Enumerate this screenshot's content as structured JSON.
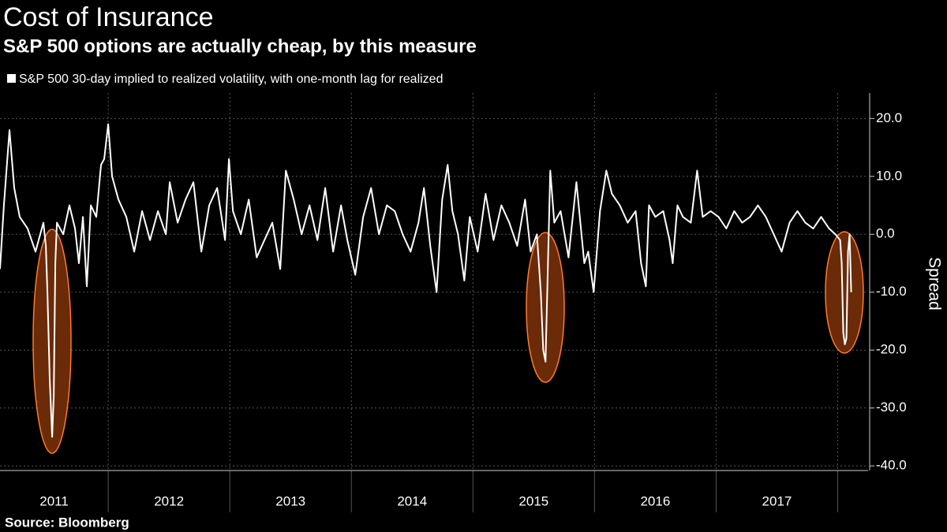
{
  "chart_data": {
    "type": "line",
    "title": "Cost of Insurance",
    "subtitle": "S&P 500 options are actually cheap, by this measure",
    "y_label": "Spread",
    "source": "Source: Bloomberg",
    "grid": true,
    "xlim": [
      2011.11,
      2018.25
    ],
    "xticks": [
      2012,
      2013,
      2014,
      2015,
      2016,
      2017,
      2018
    ],
    "x_categories": [
      "2011",
      "2012",
      "2013",
      "2014",
      "2015",
      "2016",
      "2017"
    ],
    "ylim": [
      -40.8,
      24.4
    ],
    "yticks": [
      {
        "value": 20,
        "label": "20.0"
      },
      {
        "value": 10,
        "label": "10.0"
      },
      {
        "value": 0,
        "label": "0.0"
      },
      {
        "value": -10,
        "label": "-10.0"
      },
      {
        "value": -20,
        "label": "-20.0"
      },
      {
        "value": -30,
        "label": "-30.0"
      },
      {
        "value": -40,
        "label": "-40.0"
      }
    ],
    "x": [
      2011.11,
      2011.142,
      2011.188,
      2011.227,
      2011.272,
      2011.337,
      2011.402,
      2011.467,
      2011.487,
      2011.5,
      2011.519,
      2011.539,
      2011.552,
      2011.565,
      2011.578,
      2011.63,
      2011.681,
      2011.727,
      2011.759,
      2011.792,
      2011.824,
      2011.857,
      2011.902,
      2011.941,
      2011.967,
      2012.0,
      2012.032,
      2012.084,
      2012.149,
      2012.214,
      2012.279,
      2012.344,
      2012.409,
      2012.474,
      2012.506,
      2012.571,
      2012.636,
      2012.701,
      2012.766,
      2012.831,
      2012.896,
      2012.961,
      2012.993,
      2013.026,
      2013.091,
      2013.156,
      2013.221,
      2013.285,
      2013.35,
      2013.415,
      2013.461,
      2013.526,
      2013.591,
      2013.656,
      2013.721,
      2013.785,
      2013.85,
      2013.915,
      2013.967,
      2014.032,
      2014.097,
      2014.162,
      2014.227,
      2014.292,
      2014.357,
      2014.422,
      2014.487,
      2014.552,
      2014.597,
      2014.649,
      2014.701,
      2014.747,
      2014.792,
      2014.831,
      2014.877,
      2014.929,
      2014.974,
      2015.039,
      2015.104,
      2015.169,
      2015.234,
      2015.299,
      2015.364,
      2015.429,
      2015.474,
      2015.526,
      2015.558,
      2015.578,
      2015.597,
      2015.617,
      2015.636,
      2015.669,
      2015.721,
      2015.786,
      2015.851,
      2015.916,
      2015.948,
      2015.993,
      2016.045,
      2016.097,
      2016.143,
      2016.208,
      2016.273,
      2016.338,
      2016.383,
      2016.422,
      2016.448,
      2016.5,
      2016.565,
      2016.617,
      2016.643,
      2016.682,
      2016.727,
      2016.792,
      2016.844,
      2016.89,
      2016.955,
      2017.02,
      2017.084,
      2017.149,
      2017.214,
      2017.279,
      2017.344,
      2017.409,
      2017.474,
      2017.539,
      2017.604,
      2017.669,
      2017.734,
      2017.799,
      2017.864,
      2017.929,
      2017.981,
      2018.02,
      2018.033,
      2018.046,
      2018.059,
      2018.072,
      2018.085,
      2018.098,
      2018.111
    ],
    "series": [
      {
        "name": "S&P 500 30-day implied to realized volatility, with one-month lag for realized",
        "color": "#ffffff",
        "values": [
          -6,
          5,
          18,
          8,
          3,
          1,
          -3,
          2,
          -2,
          -10,
          -25,
          -35,
          -28,
          -5,
          2,
          0,
          5,
          1,
          -5,
          3,
          -9,
          5,
          3,
          12,
          13,
          19,
          10,
          6,
          3,
          -3,
          4,
          -1,
          4,
          0,
          9,
          2,
          6,
          9,
          -3,
          5,
          8,
          -1,
          13,
          4,
          0,
          6,
          -4,
          -1,
          2,
          -6,
          11,
          6,
          0,
          5,
          -1,
          8,
          -3,
          5,
          -1,
          -7,
          3,
          8,
          0,
          5,
          4,
          0,
          -3,
          2,
          8,
          -2,
          -10,
          6,
          12,
          4,
          0,
          -8,
          3,
          -3,
          7,
          -1,
          5,
          2,
          -2,
          6,
          -3,
          0,
          -10,
          -20,
          -22,
          -5,
          11,
          2,
          4,
          -4,
          9,
          -5,
          -3,
          -10,
          4,
          11,
          7,
          5,
          2,
          4,
          -5,
          -9,
          5,
          3,
          4,
          -1,
          -5,
          5,
          3,
          2,
          11,
          3,
          4,
          3,
          1,
          4,
          2,
          3,
          5,
          3,
          0,
          -3,
          2,
          4,
          2,
          1,
          3,
          1,
          0,
          -1,
          -5,
          -17,
          -19,
          -18,
          -3,
          0,
          -10
        ]
      }
    ]
  }
}
